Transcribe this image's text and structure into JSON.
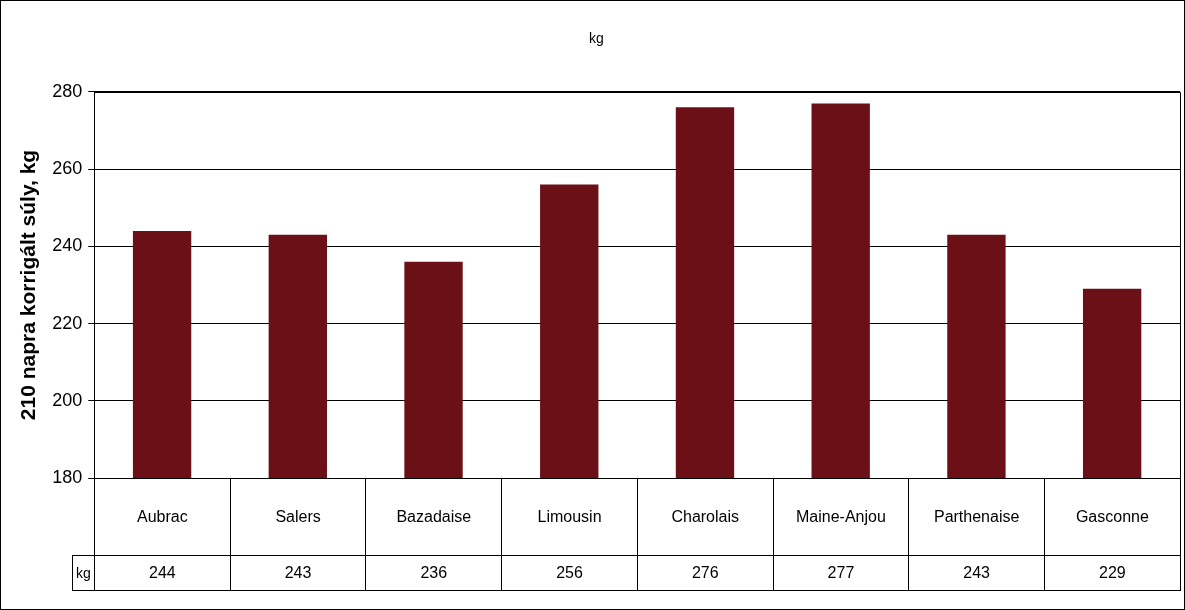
{
  "chart_data": {
    "type": "bar",
    "title": "kg",
    "ylabel": "210 napra korrigált súly, kg",
    "categories": [
      "Aubrac",
      "Salers",
      "Bazadaise",
      "Limousin",
      "Charolais",
      "Maine-Anjou",
      "Parthenaise",
      "Gasconne"
    ],
    "series": [
      {
        "name": "kg",
        "color": "#6b1016",
        "values": [
          244,
          243,
          236,
          256,
          276,
          277,
          243,
          229
        ]
      }
    ],
    "ylim": [
      180,
      280
    ],
    "yticks": [
      180,
      200,
      220,
      240,
      260,
      280
    ],
    "grid": "y",
    "legend": false,
    "data_labels": true
  }
}
